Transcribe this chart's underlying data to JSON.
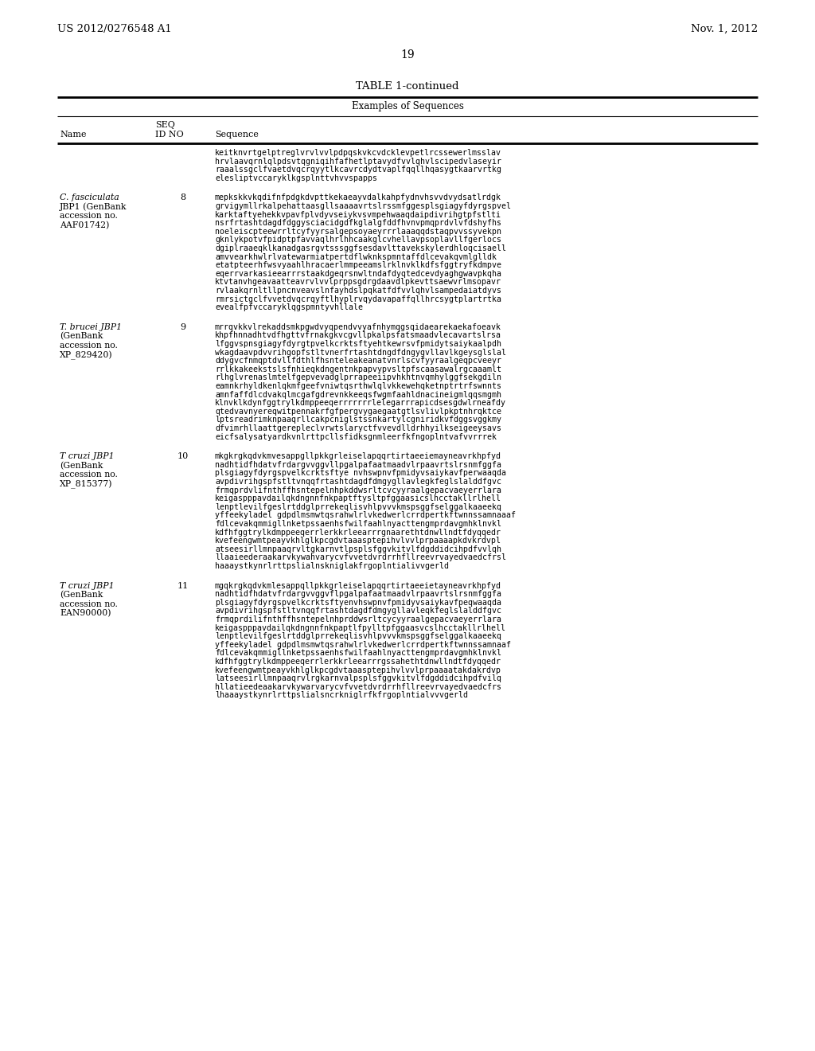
{
  "patent_number": "US 2012/0276548 A1",
  "date": "Nov. 1, 2012",
  "page_number": "19",
  "table_title": "TABLE 1-continued",
  "table_subtitle": "Examples of Sequences",
  "background_color": "#ffffff",
  "text_color": "#000000",
  "rows": [
    {
      "name": "",
      "seq_id": "",
      "sequence": "keitknvrtgelptreglvrvlvvlpdpqskvkcvdcklevpetlrcssewerlmsslav\nhrvlaavqrnlqlpdsvtqgniqihfafhetlptavydfvvlqhvlscipedvlaseyir\nraaalssgclfvaetdvqcrqyytlkcavrcdydtvaplfqqllhqasygtkaarvrtkg\nelesliptvccaryklkgsplnttvhvvspapps"
    },
    {
      "name": [
        "C. fasciculata",
        "JBP1 (GenBank",
        "accession no.",
        "AAF01742)"
      ],
      "name_italic": [
        true,
        false,
        false,
        false
      ],
      "seq_id": "8",
      "sequence": "mepkskkvkqdifnfpdgkdvpttkekaeayvdalkahpfydnvhsvvdvydsatlrdgk\ngrvigymllrkalpehattaasgllsaaaavrtslrssmfggesplsgiagyfdyrgspvel\nkarktaftyehekkvpavfplvdyvseiykvsvmpehwaaqdaipdivrihgtpfstlti\nnsrfrtashtdagdfdggysciacidgdfkglalgfddfhvnvpmqprdvlvfdshyfhs\nnoeleiscpteewrrltcyfyyrsalgepsoyaeyrrrlaaaqqdstaqpvvssyvekpn\ngknlykpotvfpidptpfavvaqlhrlhhcaakglcvhellavpsoplavllfgerlocs\ndgiplraaeqklkanadgasrgvtsssggfsesdavlttavekskylerdhloqcisaell\namvvearkhwlrlvatewarmiatpertdflwknkspmntaffdlcevakqvmlglldk\netatpteerhfwsvyaahlhracaerlmmpeeamslrklnvklkdfsfggtryfkdmpve\neqerrvarkasieearrrstaakdgeqrsnwltndafdyqtedcevdyaghgwavpkqha\nktvtanvhgeavaatteavrvlvvlprppsgdrgdaavdlpkevttsaewvrlmsopavr\nrvlaakqrnltllpncnveavslnfayhdslpqkatfdfvvlqhvlsampedaiatdyvs\nrmrsictgclfvvetdvqcrqyftlhyplrvqydavapaffqllhrcsygtplartrtka\nevealfpfvccaryklqgspmntyvhllale"
    },
    {
      "name": [
        "T. brucei JBP1",
        "(GenBank",
        "accession no.",
        "XP_829420)"
      ],
      "name_italic": [
        true,
        false,
        false,
        false
      ],
      "seq_id": "9",
      "sequence": "mrrqvkkvlrekaddsmkpgwdvyqpendvvyafnhymqgsqidaearekaekafoeavk\nkhpfhnnadhtvdfhgttvfrnakgkvcgvllpkalpsfatsmaadvlecavartslrsa\nlfggvspnsgiagyfdyrgtpvelkcrktsftyehtkewrsvfpmidytsaiykaalpdh\nwkagdaavpdvvrihgopfstltvnerfrtashtdngdfdngygvllavlkgeysglslal\nddygvcfnmqptdvllfdthlfhsnteleakeanatvnrlscvfyyraalgeqpcveeyr\nrrlkkakeekstslsfnhieqkdngentnkpapvypvsltpfscaasawalrgcaaamlt\nrlhglvrenaslmtelfgepvevadglprrapeeiipvhkhtnvqmhylggfsekgdiln\neamnkrhyldkenlqkmfgeefvniwtqsrthwlqlvkkewehqketnptrtrfswnnts\namnfaffdlcdvakqlmcgafgdrevnkkeeqsfwgmfaahldnacineigmlqqsmgmh\nklnvklkdynfggtrylkdmppeeqerrrrrrrlelegarrrapicdsesgdwlrneafdy\nqtedvavnyereqwitpennakrfgfpergvygaegaatgtlsvlivlpkptnhrqktce\nlptsreadrimknpaaqrllcakpcniglstssnkartylcgniridkvfdggsvggkmy\ndfvimrhllaattgerepleclvrwtslaryctfvvevdlldrhhyilkseigeeysavs\neicfsalysatyardkvnlrttpcllsfidksgnmleerfkfngoplntvafvvrrrek"
    },
    {
      "name": [
        "T cruzi JBP1",
        "(GenBank",
        "accession no.",
        "XP_815377)"
      ],
      "name_italic": [
        true,
        false,
        false,
        false
      ],
      "seq_id": "10",
      "sequence": "mkgkrgkqdvkmvesappgllpkkgrleiselapqqrtirtaeeiemayneavrkhpfyd\nnadhtidfhdatvfrdargvvggvllpgalpafaatmaadvlrpaavrtslrsnmfggfa\nplsgiagyfdyrgspvelkcrktsftye nvhswpnvfpmidyvsaiykavfperwaaqda\navpdivrihgspfstltvnqqfrtashtdagdfdmgygllavlegkfeglslalddfgvc\nfrmqprdvlifnthffhsntepelnhpkddwsrltcvcyyraalgepacvaeyerrlara\nkeigaspppavdailqkdngnnfnkpaptftysltpfggaasicslhcctakllrlhell\nlenptlevilfgeslrtddglprrekeqlisvhlpvvvkmspsggfselggalkaaeekq\nyffeekyladel gdpdlmsmwtqsrahwlrlvkedwerlcrrdpertkftwnnssamnaaaf\nfdlcevakqmmigllnketpssaenhsfwilfaahlnyacttengmprdavgmhklnvkl\nkdfhfggtrylkdmppeeqerrlerkkrleearrrgnaarethtdnwllndtfdyqqedr\nkvefeengwmtpeayvkhlglkpcgdvtaaasptepihvlvvlprpaaaapkdvkrdvpl\natseesirllmnpaaqrvltgkarnvtlpsplsfggvkitvlfdgddidcihpdfvvlqh\nllaaieederaakarvkywahvarycvfvvetdvrdrrhfllreevrvayedvaedcfrsl\nhaaaystkynrlrttpslialnskniglakfrgoplntialivvgerld"
    },
    {
      "name": [
        "T cruzi JBP1",
        "(GenBank",
        "accession no.",
        "EAN90000)"
      ],
      "name_italic": [
        true,
        false,
        false,
        false
      ],
      "seq_id": "11",
      "sequence": "mgqkrgkqdvkmlesappqllpkkgrleiselapqqrtirtaeeietayneavrkhpfyd\nnadhtidfhdatvfrdargvvggvflpgalpafaatmaadvlrpaavrtslrsnmfggfa\nplsgiagyfdyrgspvelkcrktsftyenvhswpnvfpmidyvsaiykavfpeqwaaqda\navpdivrihgspfstltvnqqfrtashtdagdfdmgygllavleqkfeglslalddfgvc\nfrmqprdilifnthffhsntepelnhprddwsrltcycyyraalgepacvaeyerrlara\nkeigaspppavdailqkdngnnfnkpaptlfpylltpfggaasvcslhcctakllrlhell\nlenptlevilfgeslrtddglprrekeqlisvhlpvvvkmspsggfselggalkaaeekq\nyffeekyladel gdpdlmsmwtqsrahwlrlvkedwerlcrrdpertkftwnnssamnaaf\nfdlcevakqmmigllnketpssaenhsfwilfaahlnyacttengmprdavgmhklnvkl\nkdfhfggtrylkdmppeeqerrlerkkrleearrrgssahethtdnwllndtfdyqqedr\nkvefeengwmtpeayvkhlglkpcgdvtaaasptepihvlvvlprpaaaatakdakrdvp\nlatseesirllmnpaaqrvlrgkarnvalpsplsfggvkitvlfdgddidcihpdfvilq\nhllatieedeaakarvkywarvarycvfvvetdvrdrrhfllreevrvayedvaedcfrs\nlhaaaystkynrlrttpslialsncrkniglrfkfrgoplntialvvvgerld"
    }
  ]
}
